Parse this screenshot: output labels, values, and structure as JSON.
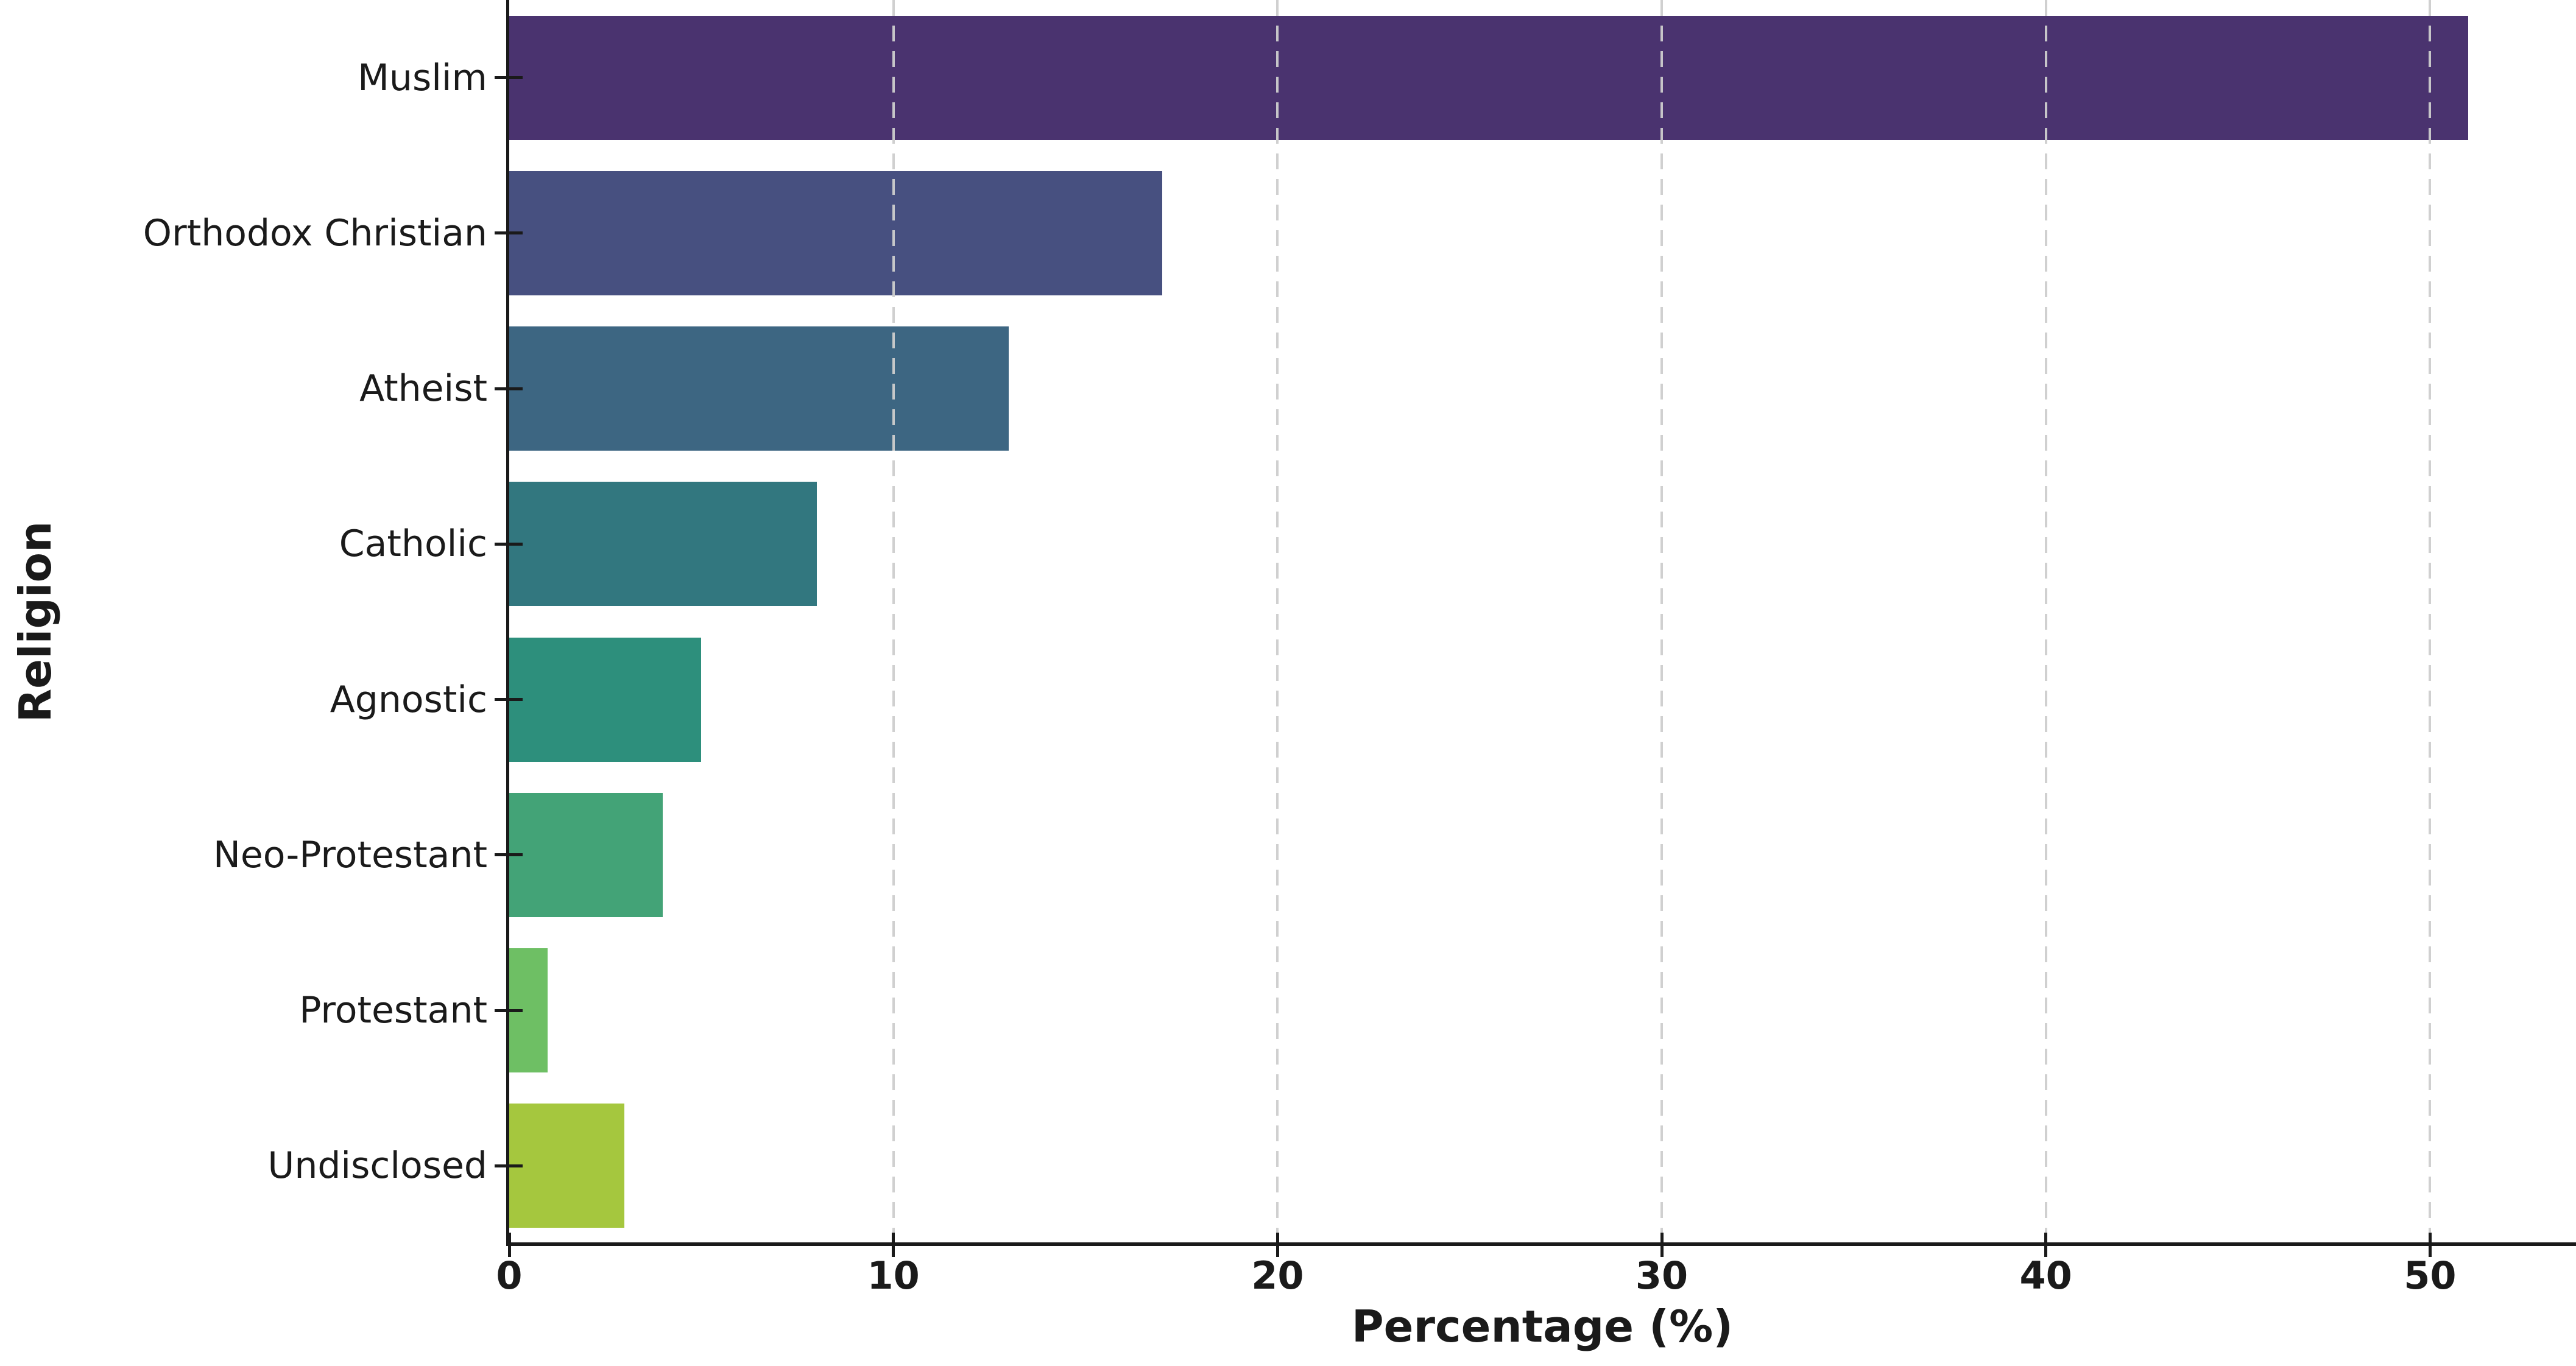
{
  "chart_data": {
    "type": "bar",
    "orientation": "horizontal",
    "title": "",
    "xlabel": "Percentage (%)",
    "ylabel": "Religion",
    "categories": [
      "Muslim",
      "Orthodox Christian",
      "Atheist",
      "Catholic",
      "Agnostic",
      "Neo-Protestant",
      "Protestant",
      "Undisclosed"
    ],
    "values": [
      51,
      17,
      13,
      8,
      5,
      4,
      1,
      3
    ],
    "bar_colors": [
      "#4a336f",
      "#475080",
      "#3d6682",
      "#32777f",
      "#2d8f7c",
      "#43a377",
      "#6ebf64",
      "#a5c73e"
    ],
    "x_ticks": [
      0,
      10,
      20,
      30,
      40,
      50
    ],
    "xlim": [
      0,
      53.8
    ],
    "bar_band_fraction": 0.8,
    "grid": "vertical-dashed",
    "gridline_color": "#cdcdcd",
    "axis_color": "#1a1a1a",
    "background_color": "#ffffff",
    "legend": "none"
  }
}
